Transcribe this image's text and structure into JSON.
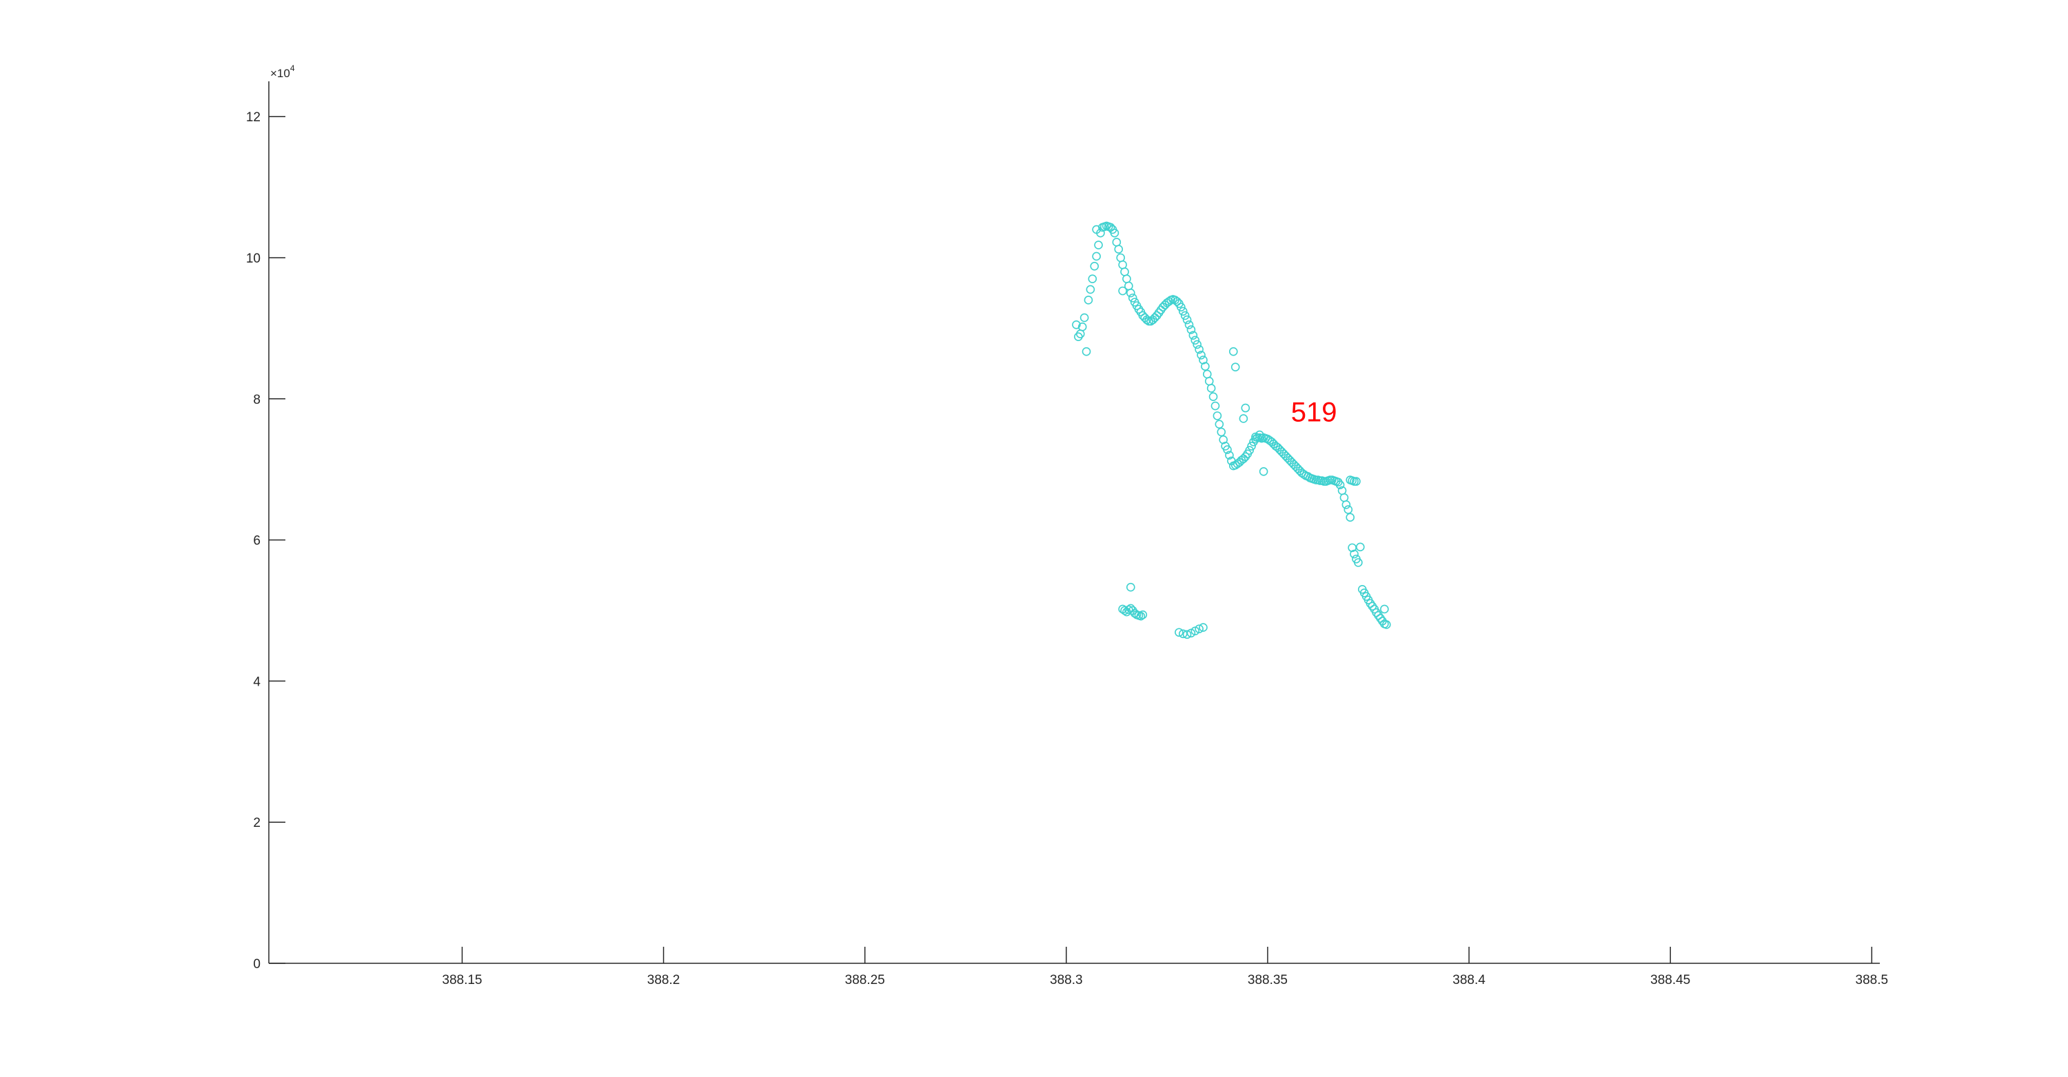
{
  "chart_data": {
    "type": "scatter",
    "title": "",
    "xlabel": "",
    "ylabel": "",
    "xlim": [
      388.102,
      388.502
    ],
    "ylim": [
      0,
      125000
    ],
    "x_ticks": [
      388.15,
      388.2,
      388.25,
      388.3,
      388.35,
      388.4,
      388.45,
      388.5
    ],
    "x_tick_labels": [
      "388.15",
      "388.2",
      "388.25",
      "388.3",
      "388.35",
      "388.4",
      "388.45",
      "388.5"
    ],
    "y_ticks": [
      0,
      20000,
      40000,
      60000,
      80000,
      100000,
      120000
    ],
    "y_tick_labels": [
      "0",
      "2",
      "4",
      "6",
      "8",
      "10",
      "12"
    ],
    "y_exponent": {
      "base": "×10",
      "power": "4"
    },
    "grid": false,
    "marker": "circle-open",
    "marker_color": "#3fd1cf",
    "annotation": {
      "text": "519",
      "x": 388.3615,
      "y": 76800,
      "color": "#ff0000"
    },
    "series": [
      {
        "points": [
          [
            388.3025,
            90500
          ],
          [
            388.303,
            88800
          ],
          [
            388.3035,
            89200
          ],
          [
            388.304,
            90200
          ],
          [
            388.3045,
            91500
          ],
          [
            388.305,
            86700
          ],
          [
            388.3055,
            94000
          ],
          [
            388.306,
            95500
          ],
          [
            388.3065,
            97000
          ],
          [
            388.307,
            98800
          ],
          [
            388.3075,
            100200
          ],
          [
            388.308,
            101800
          ],
          [
            388.3085,
            103500
          ],
          [
            388.3075,
            104000
          ],
          [
            388.309,
            104300
          ],
          [
            388.3095,
            104400
          ],
          [
            388.31,
            104500
          ],
          [
            388.3105,
            104400
          ],
          [
            388.311,
            104300
          ],
          [
            388.3115,
            104000
          ],
          [
            388.312,
            103500
          ],
          [
            388.3125,
            102200
          ],
          [
            388.313,
            101200
          ],
          [
            388.3135,
            100000
          ],
          [
            388.314,
            99000
          ],
          [
            388.3145,
            98000
          ],
          [
            388.314,
            95300
          ],
          [
            388.315,
            97000
          ],
          [
            388.3155,
            96000
          ],
          [
            388.316,
            95000
          ],
          [
            388.3165,
            94300
          ],
          [
            388.317,
            93700
          ],
          [
            388.3175,
            93200
          ],
          [
            388.318,
            92700
          ],
          [
            388.3185,
            92300
          ],
          [
            388.319,
            91800
          ],
          [
            388.3195,
            91500
          ],
          [
            388.32,
            91200
          ],
          [
            388.3205,
            91000
          ],
          [
            388.321,
            91000
          ],
          [
            388.3215,
            91200
          ],
          [
            388.322,
            91500
          ],
          [
            388.3225,
            91800
          ],
          [
            388.323,
            92200
          ],
          [
            388.3235,
            92600
          ],
          [
            388.324,
            93000
          ],
          [
            388.3245,
            93300
          ],
          [
            388.325,
            93600
          ],
          [
            388.3255,
            93800
          ],
          [
            388.326,
            94000
          ],
          [
            388.3265,
            94100
          ],
          [
            388.327,
            94000
          ],
          [
            388.3275,
            93800
          ],
          [
            388.328,
            93500
          ],
          [
            388.3285,
            93000
          ],
          [
            388.329,
            92400
          ],
          [
            388.3295,
            91800
          ],
          [
            388.33,
            91200
          ],
          [
            388.3305,
            90500
          ],
          [
            388.331,
            89800
          ],
          [
            388.3315,
            89000
          ],
          [
            388.332,
            88300
          ],
          [
            388.3325,
            87700
          ],
          [
            388.333,
            87000
          ],
          [
            388.3335,
            86200
          ],
          [
            388.334,
            85500
          ],
          [
            388.3345,
            84600
          ],
          [
            388.335,
            83500
          ],
          [
            388.3355,
            82500
          ],
          [
            388.336,
            81500
          ],
          [
            388.3365,
            80300
          ],
          [
            388.337,
            79000
          ],
          [
            388.3375,
            77600
          ],
          [
            388.338,
            76400
          ],
          [
            388.3385,
            75300
          ],
          [
            388.339,
            74200
          ],
          [
            388.3395,
            73300
          ],
          [
            388.34,
            72800
          ],
          [
            388.3405,
            72000
          ],
          [
            388.341,
            71200
          ],
          [
            388.3415,
            70500
          ],
          [
            388.342,
            70600
          ],
          [
            388.3425,
            70800
          ],
          [
            388.343,
            71000
          ],
          [
            388.3435,
            71300
          ],
          [
            388.344,
            71500
          ],
          [
            388.3445,
            71800
          ],
          [
            388.345,
            72200
          ],
          [
            388.3455,
            72700
          ],
          [
            388.346,
            73300
          ],
          [
            388.3465,
            73900
          ],
          [
            388.347,
            74300
          ],
          [
            388.3475,
            74500
          ],
          [
            388.348,
            74500
          ],
          [
            388.3485,
            74400
          ],
          [
            388.349,
            74500
          ],
          [
            388.3495,
            74400
          ],
          [
            388.35,
            74300
          ],
          [
            388.3505,
            74100
          ],
          [
            388.351,
            73900
          ],
          [
            388.3515,
            73600
          ],
          [
            388.352,
            73300
          ],
          [
            388.3525,
            73100
          ],
          [
            388.353,
            72800
          ],
          [
            388.3535,
            72500
          ],
          [
            388.354,
            72200
          ],
          [
            388.3545,
            71900
          ],
          [
            388.355,
            71600
          ],
          [
            388.3555,
            71300
          ],
          [
            388.356,
            71000
          ],
          [
            388.3565,
            70700
          ],
          [
            388.357,
            70400
          ],
          [
            388.3575,
            70100
          ],
          [
            388.358,
            69800
          ],
          [
            388.3585,
            69500
          ],
          [
            388.359,
            69300
          ],
          [
            388.3595,
            69100
          ],
          [
            388.36,
            69000
          ],
          [
            388.3605,
            68800
          ],
          [
            388.361,
            68700
          ],
          [
            388.3615,
            68600
          ],
          [
            388.362,
            68500
          ],
          [
            388.3625,
            68500
          ],
          [
            388.363,
            68400
          ],
          [
            388.3635,
            68400
          ],
          [
            388.364,
            68300
          ],
          [
            388.3645,
            68300
          ],
          [
            388.365,
            68400
          ],
          [
            388.3655,
            68500
          ],
          [
            388.366,
            68500
          ],
          [
            388.3665,
            68400
          ],
          [
            388.367,
            68300
          ],
          [
            388.3675,
            68200
          ],
          [
            388.368,
            67800
          ],
          [
            388.3685,
            67000
          ],
          [
            388.369,
            66000
          ],
          [
            388.3695,
            65000
          ],
          [
            388.37,
            64300
          ],
          [
            388.3705,
            63200
          ],
          [
            388.371,
            58900
          ],
          [
            388.3715,
            58000
          ],
          [
            388.372,
            57300
          ],
          [
            388.3725,
            56800
          ],
          [
            388.373,
            59000
          ],
          [
            388.3735,
            53000
          ],
          [
            388.374,
            52500
          ],
          [
            388.3745,
            52000
          ],
          [
            388.375,
            51500
          ],
          [
            388.3755,
            51000
          ],
          [
            388.376,
            50600
          ],
          [
            388.3765,
            50200
          ],
          [
            388.377,
            49700
          ],
          [
            388.3775,
            49300
          ],
          [
            388.378,
            48900
          ],
          [
            388.3785,
            48500
          ],
          [
            388.379,
            48100
          ],
          [
            388.3795,
            48000
          ],
          [
            388.3705,
            68500
          ],
          [
            388.371,
            68400
          ],
          [
            388.3715,
            68300
          ],
          [
            388.372,
            68300
          ],
          [
            388.349,
            69700
          ],
          [
            388.347,
            74600
          ],
          [
            388.342,
            84500
          ],
          [
            388.3415,
            86700
          ],
          [
            388.344,
            77200
          ],
          [
            388.3445,
            78700
          ],
          [
            388.348,
            74900
          ],
          [
            388.379,
            50200
          ],
          [
            388.314,
            50200
          ],
          [
            388.3145,
            50000
          ],
          [
            388.315,
            49800
          ],
          [
            388.3155,
            50100
          ],
          [
            388.316,
            50300
          ],
          [
            388.3165,
            50000
          ],
          [
            388.317,
            49600
          ],
          [
            388.3175,
            49400
          ],
          [
            388.318,
            49300
          ],
          [
            388.3185,
            49200
          ],
          [
            388.319,
            49400
          ],
          [
            388.316,
            53300
          ],
          [
            388.328,
            46900
          ],
          [
            388.329,
            46700
          ],
          [
            388.33,
            46600
          ],
          [
            388.331,
            46800
          ],
          [
            388.332,
            47100
          ],
          [
            388.333,
            47400
          ],
          [
            388.334,
            47600
          ]
        ]
      }
    ]
  }
}
